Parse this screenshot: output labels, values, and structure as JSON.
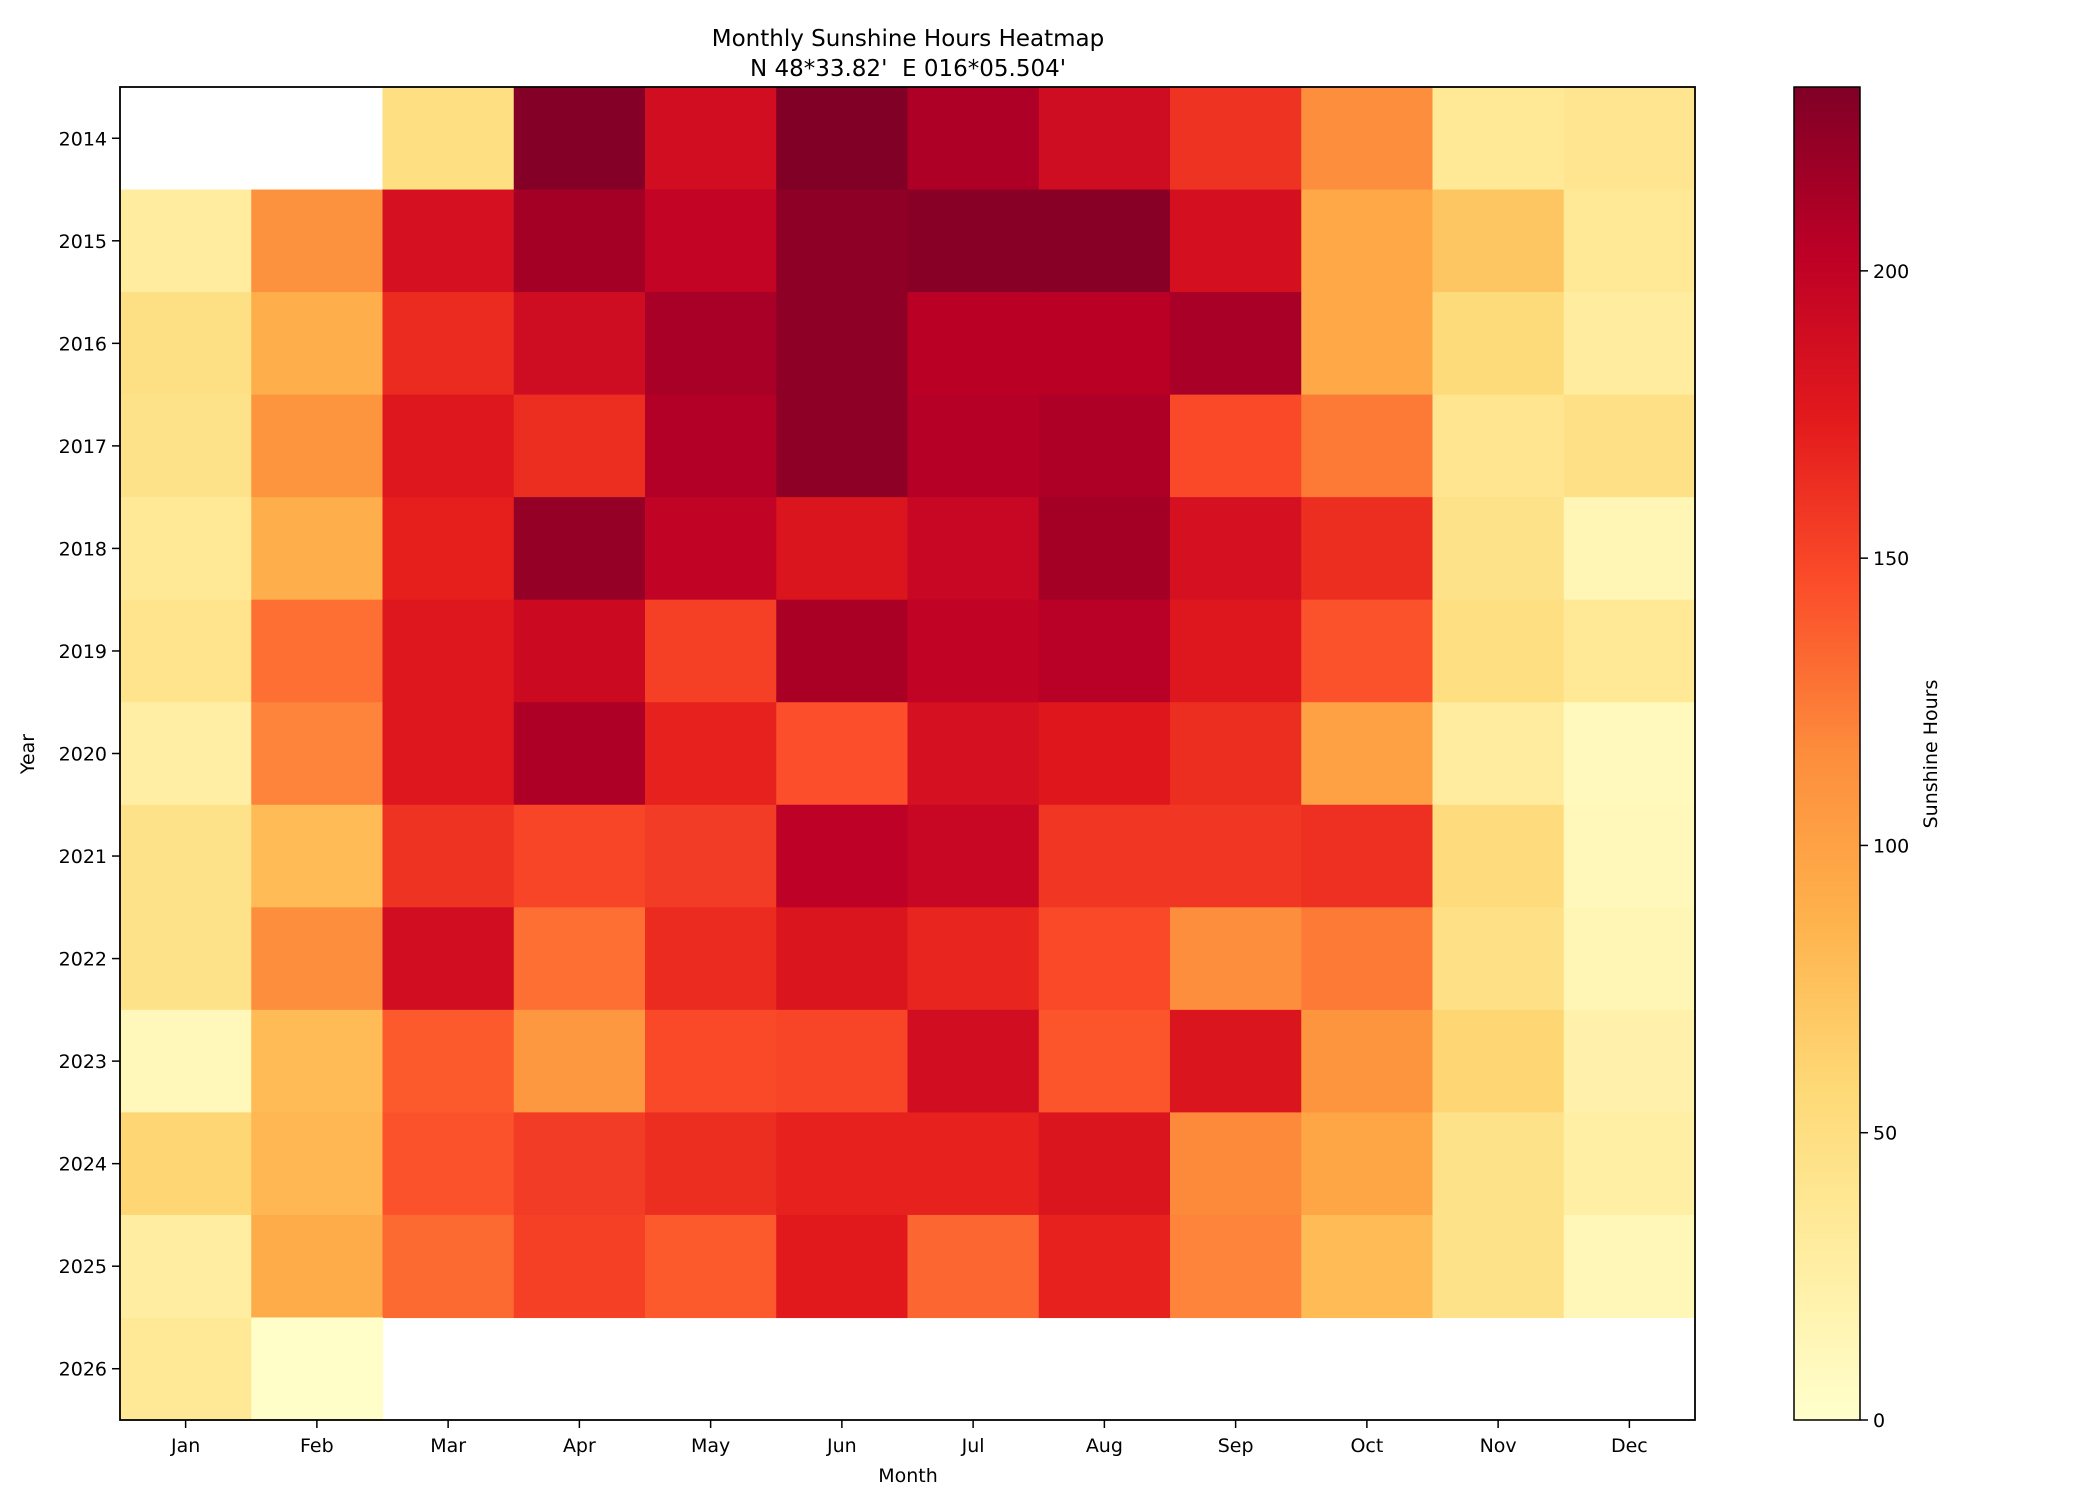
{
  "chart_data": {
    "type": "heatmap",
    "title": "Monthly Sunshine Hours Heatmap",
    "subtitle": "N 48*33.82'  E 016*05.504'",
    "xlabel": "Month",
    "ylabel": "Year",
    "colorbar_label": "Sunshine Hours",
    "colormap": "YlOrRd",
    "vmin": 0,
    "vmax": 232,
    "colorbar_ticks": [
      0,
      50,
      100,
      150,
      200
    ],
    "colorbar_tick_labels": [
      "0",
      "50",
      "100",
      "150",
      "200"
    ],
    "x_categories": [
      "Jan",
      "Feb",
      "Mar",
      "Apr",
      "May",
      "Jun",
      "Jul",
      "Aug",
      "Sep",
      "Oct",
      "Nov",
      "Dec"
    ],
    "y_categories": [
      "2014",
      "2015",
      "2016",
      "2017",
      "2018",
      "2019",
      "2020",
      "2021",
      "2022",
      "2023",
      "2024",
      "2025",
      "2026"
    ],
    "values": [
      [
        null,
        null,
        50,
        230,
        188,
        232,
        210,
        190,
        160,
        115,
        35,
        40
      ],
      [
        30,
        112,
        185,
        215,
        198,
        225,
        228,
        228,
        186,
        95,
        72,
        35
      ],
      [
        48,
        90,
        165,
        190,
        213,
        225,
        204,
        204,
        213,
        95,
        55,
        30
      ],
      [
        45,
        110,
        178,
        163,
        208,
        225,
        206,
        210,
        148,
        125,
        40,
        46
      ],
      [
        35,
        90,
        171,
        222,
        200,
        180,
        195,
        215,
        185,
        163,
        45,
        15
      ],
      [
        42,
        130,
        178,
        192,
        153,
        212,
        200,
        205,
        178,
        143,
        50,
        35
      ],
      [
        27,
        120,
        178,
        210,
        170,
        145,
        185,
        177,
        163,
        100,
        30,
        10
      ],
      [
        45,
        80,
        160,
        150,
        155,
        202,
        195,
        158,
        158,
        162,
        53,
        12
      ],
      [
        45,
        115,
        188,
        130,
        165,
        180,
        168,
        148,
        115,
        125,
        47,
        15
      ],
      [
        12,
        80,
        140,
        108,
        148,
        150,
        188,
        142,
        180,
        110,
        60,
        22
      ],
      [
        60,
        83,
        143,
        155,
        163,
        170,
        170,
        180,
        118,
        97,
        45,
        26
      ],
      [
        28,
        92,
        132,
        153,
        140,
        175,
        134,
        170,
        120,
        80,
        45,
        13
      ],
      [
        35,
        2,
        null,
        null,
        null,
        null,
        null,
        null,
        null,
        null,
        null,
        null
      ]
    ]
  }
}
